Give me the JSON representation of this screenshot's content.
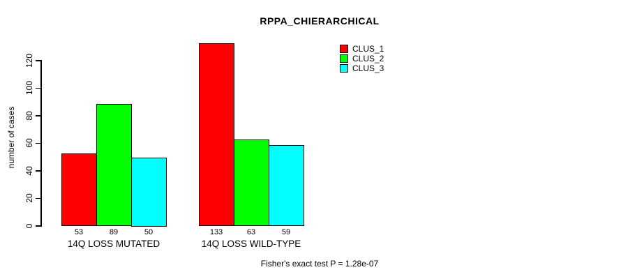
{
  "title": "RPPA_CHIERARCHICAL",
  "footer": "Fisher's exact test P = 1.28e-07",
  "chart_data": {
    "type": "bar",
    "title": "RPPA_CHIERARCHICAL",
    "xlabel": "",
    "ylabel": "number of cases",
    "categories": [
      "14Q LOSS MUTATED",
      "14Q LOSS WILD-TYPE"
    ],
    "series": [
      {
        "name": "CLUS_1",
        "color": "#ff0000",
        "values": [
          53,
          133
        ]
      },
      {
        "name": "CLUS_2",
        "color": "#00ff00",
        "values": [
          89,
          63
        ]
      },
      {
        "name": "CLUS_3",
        "color": "#00ffff",
        "values": [
          50,
          59
        ]
      }
    ],
    "bar_value_labels": [
      [
        "53",
        "89",
        "50"
      ],
      [
        "133",
        "63",
        "59"
      ]
    ],
    "yticks": [
      0,
      20,
      40,
      60,
      80,
      100,
      120
    ],
    "ylim": [
      0,
      133
    ],
    "grid": false,
    "legend_position": "top-right",
    "legend_entries": [
      "CLUS_1",
      "CLUS_2",
      "CLUS_3"
    ],
    "annotation": "Fisher's exact test P = 1.28e-07"
  }
}
